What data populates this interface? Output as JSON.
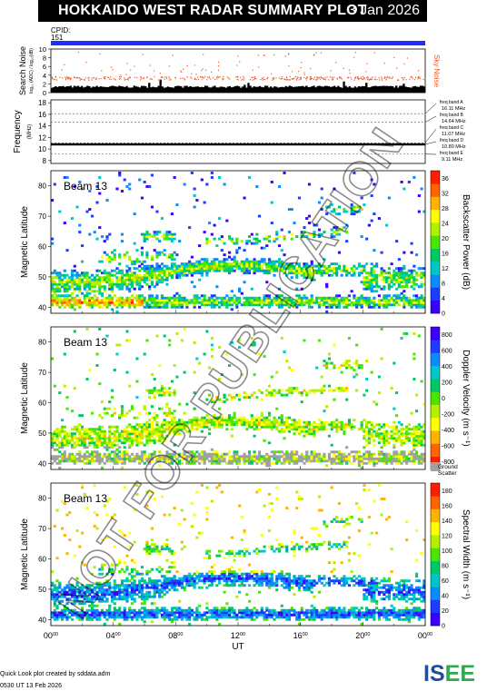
{
  "header": {
    "title": "HOKKAIDO WEST RADAR SUMMARY PLOT",
    "date": "3 Jan 2026",
    "cpid_label": "CPID:",
    "cpid_value": "151"
  },
  "footer": {
    "line1": "Quick Look plot created by sddata.adm",
    "line2": "0530 UT 13 Feb 2026",
    "logo_text": "ISEE"
  },
  "watermark": "NOT FOR PUBLICATION",
  "colors": {
    "cpid_bar": "#1f2dff",
    "noise_dots": "#f05a28",
    "sky_noise_label": "#f05a28",
    "ground_scatter": "#a0a0a0",
    "logo_blue": "#1f4e9a",
    "logo_green": "#2fa84f"
  },
  "chart_data": [
    {
      "type": "line",
      "id": "noise",
      "ylabel": "Search Noise",
      "ylabel_sub": "log₁₀ (ADC) / log₁₀(dB)",
      "right_label": "Sky Noise",
      "yticks": [
        "0",
        "2",
        "4",
        "6",
        "8",
        "10"
      ],
      "ylim": [
        0,
        10
      ],
      "xlim": [
        0,
        24
      ],
      "sky_noise_level": 3.4,
      "search_noise_level": 1.1
    },
    {
      "type": "line",
      "id": "frequency",
      "ylabel": "Frequency",
      "ylabel_sub": "(MHz)",
      "yticks": [
        "8",
        "10",
        "12",
        "14",
        "16",
        "18"
      ],
      "ylim": [
        7.5,
        18.5
      ],
      "xlim": [
        0,
        24
      ],
      "operating_frequency": 10.8,
      "bands": [
        {
          "label": "freq band A",
          "freq": "16.11 MHz",
          "value": 16.11
        },
        {
          "label": "freq band B",
          "freq": "14.64 MHz",
          "value": 14.64
        },
        {
          "label": "freq band C",
          "freq": "11.07 MHz",
          "value": 11.07
        },
        {
          "label": "freq band D",
          "freq": "10.80 MHz",
          "value": 10.8
        },
        {
          "label": "freq band E",
          "freq": "9.11 MHz",
          "value": 9.11
        }
      ]
    },
    {
      "type": "heatmap",
      "id": "power",
      "beam_label": "Beam 13",
      "ylabel": "Magnetic Latitude",
      "yticks": [
        "40",
        "50",
        "60",
        "70",
        "80"
      ],
      "ylim": [
        38,
        85
      ],
      "xlim": [
        0,
        24
      ],
      "colorbar_label": "Backscatter Power (dB)",
      "colorbar_ticks": [
        "0",
        "4",
        "8",
        "12",
        "16",
        "20",
        "24",
        "28",
        "32",
        "36"
      ],
      "colorbar_range": [
        0,
        38
      ],
      "palette": [
        "#3b00ff",
        "#1e3cff",
        "#0a8cff",
        "#00c8c8",
        "#00c864",
        "#4be600",
        "#b4f000",
        "#ffff00",
        "#ffb400",
        "#ff6400",
        "#ff1e00"
      ]
    },
    {
      "type": "heatmap",
      "id": "velocity",
      "beam_label": "Beam 13",
      "ylabel": "Magnetic Latitude",
      "yticks": [
        "40",
        "50",
        "60",
        "70",
        "80"
      ],
      "ylim": [
        38,
        85
      ],
      "xlim": [
        0,
        24
      ],
      "colorbar_label": "Doppler Velocity (m s⁻¹)",
      "colorbar_ticks": [
        "-800",
        "-600",
        "-400",
        "-200",
        "0",
        "200",
        "400",
        "600",
        "800"
      ],
      "colorbar_range": [
        -900,
        900
      ],
      "ground_scatter_label": "Ground Scatter",
      "palette": [
        "#ff1e00",
        "#ff6400",
        "#ffb400",
        "#ffff00",
        "#b4f000",
        "#4be600",
        "#00c864",
        "#00c8c8",
        "#0a8cff",
        "#1e3cff",
        "#3b00ff"
      ]
    },
    {
      "type": "heatmap",
      "id": "width",
      "beam_label": "Beam 13",
      "ylabel": "Magnetic Latitude",
      "yticks": [
        "40",
        "50",
        "60",
        "70",
        "80"
      ],
      "ylim": [
        38,
        85
      ],
      "xlim": [
        0,
        24
      ],
      "xlabel": "UT",
      "xticks": [
        {
          "h": "00",
          "m": "00"
        },
        {
          "h": "04",
          "m": "00"
        },
        {
          "h": "08",
          "m": "00"
        },
        {
          "h": "12",
          "m": "00"
        },
        {
          "h": "16",
          "m": "00"
        },
        {
          "h": "20",
          "m": "00"
        },
        {
          "h": "00",
          "m": "00"
        }
      ],
      "colorbar_label": "Spectral Width (m s⁻¹)",
      "colorbar_ticks": [
        "0",
        "20",
        "40",
        "60",
        "80",
        "100",
        "120",
        "140",
        "160",
        "180"
      ],
      "colorbar_range": [
        0,
        190
      ],
      "palette": [
        "#3b00ff",
        "#1e3cff",
        "#0a8cff",
        "#00c8c8",
        "#00c864",
        "#4be600",
        "#b4f000",
        "#ffff00",
        "#ffb400",
        "#ff6400",
        "#ff1e00"
      ]
    }
  ]
}
